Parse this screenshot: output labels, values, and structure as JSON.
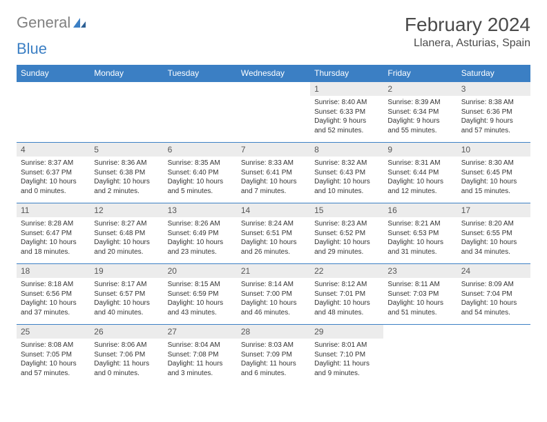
{
  "logo": {
    "part1": "General",
    "part2": "Blue"
  },
  "title": "February 2024",
  "location": "Llanera, Asturias, Spain",
  "colors": {
    "headerBg": "#3b7fc4",
    "headerFg": "#ffffff",
    "dayNumBg": "#ececec",
    "border": "#3b7fc4"
  },
  "dayNames": [
    "Sunday",
    "Monday",
    "Tuesday",
    "Wednesday",
    "Thursday",
    "Friday",
    "Saturday"
  ],
  "weeks": [
    [
      null,
      null,
      null,
      null,
      {
        "n": "1",
        "sr": "8:40 AM",
        "ss": "6:33 PM",
        "dl": "9 hours and 52 minutes."
      },
      {
        "n": "2",
        "sr": "8:39 AM",
        "ss": "6:34 PM",
        "dl": "9 hours and 55 minutes."
      },
      {
        "n": "3",
        "sr": "8:38 AM",
        "ss": "6:36 PM",
        "dl": "9 hours and 57 minutes."
      }
    ],
    [
      {
        "n": "4",
        "sr": "8:37 AM",
        "ss": "6:37 PM",
        "dl": "10 hours and 0 minutes."
      },
      {
        "n": "5",
        "sr": "8:36 AM",
        "ss": "6:38 PM",
        "dl": "10 hours and 2 minutes."
      },
      {
        "n": "6",
        "sr": "8:35 AM",
        "ss": "6:40 PM",
        "dl": "10 hours and 5 minutes."
      },
      {
        "n": "7",
        "sr": "8:33 AM",
        "ss": "6:41 PM",
        "dl": "10 hours and 7 minutes."
      },
      {
        "n": "8",
        "sr": "8:32 AM",
        "ss": "6:43 PM",
        "dl": "10 hours and 10 minutes."
      },
      {
        "n": "9",
        "sr": "8:31 AM",
        "ss": "6:44 PM",
        "dl": "10 hours and 12 minutes."
      },
      {
        "n": "10",
        "sr": "8:30 AM",
        "ss": "6:45 PM",
        "dl": "10 hours and 15 minutes."
      }
    ],
    [
      {
        "n": "11",
        "sr": "8:28 AM",
        "ss": "6:47 PM",
        "dl": "10 hours and 18 minutes."
      },
      {
        "n": "12",
        "sr": "8:27 AM",
        "ss": "6:48 PM",
        "dl": "10 hours and 20 minutes."
      },
      {
        "n": "13",
        "sr": "8:26 AM",
        "ss": "6:49 PM",
        "dl": "10 hours and 23 minutes."
      },
      {
        "n": "14",
        "sr": "8:24 AM",
        "ss": "6:51 PM",
        "dl": "10 hours and 26 minutes."
      },
      {
        "n": "15",
        "sr": "8:23 AM",
        "ss": "6:52 PM",
        "dl": "10 hours and 29 minutes."
      },
      {
        "n": "16",
        "sr": "8:21 AM",
        "ss": "6:53 PM",
        "dl": "10 hours and 31 minutes."
      },
      {
        "n": "17",
        "sr": "8:20 AM",
        "ss": "6:55 PM",
        "dl": "10 hours and 34 minutes."
      }
    ],
    [
      {
        "n": "18",
        "sr": "8:18 AM",
        "ss": "6:56 PM",
        "dl": "10 hours and 37 minutes."
      },
      {
        "n": "19",
        "sr": "8:17 AM",
        "ss": "6:57 PM",
        "dl": "10 hours and 40 minutes."
      },
      {
        "n": "20",
        "sr": "8:15 AM",
        "ss": "6:59 PM",
        "dl": "10 hours and 43 minutes."
      },
      {
        "n": "21",
        "sr": "8:14 AM",
        "ss": "7:00 PM",
        "dl": "10 hours and 46 minutes."
      },
      {
        "n": "22",
        "sr": "8:12 AM",
        "ss": "7:01 PM",
        "dl": "10 hours and 48 minutes."
      },
      {
        "n": "23",
        "sr": "8:11 AM",
        "ss": "7:03 PM",
        "dl": "10 hours and 51 minutes."
      },
      {
        "n": "24",
        "sr": "8:09 AM",
        "ss": "7:04 PM",
        "dl": "10 hours and 54 minutes."
      }
    ],
    [
      {
        "n": "25",
        "sr": "8:08 AM",
        "ss": "7:05 PM",
        "dl": "10 hours and 57 minutes."
      },
      {
        "n": "26",
        "sr": "8:06 AM",
        "ss": "7:06 PM",
        "dl": "11 hours and 0 minutes."
      },
      {
        "n": "27",
        "sr": "8:04 AM",
        "ss": "7:08 PM",
        "dl": "11 hours and 3 minutes."
      },
      {
        "n": "28",
        "sr": "8:03 AM",
        "ss": "7:09 PM",
        "dl": "11 hours and 6 minutes."
      },
      {
        "n": "29",
        "sr": "8:01 AM",
        "ss": "7:10 PM",
        "dl": "11 hours and 9 minutes."
      },
      null,
      null
    ]
  ],
  "labels": {
    "sunrise": "Sunrise: ",
    "sunset": "Sunset: ",
    "daylight": "Daylight: "
  }
}
